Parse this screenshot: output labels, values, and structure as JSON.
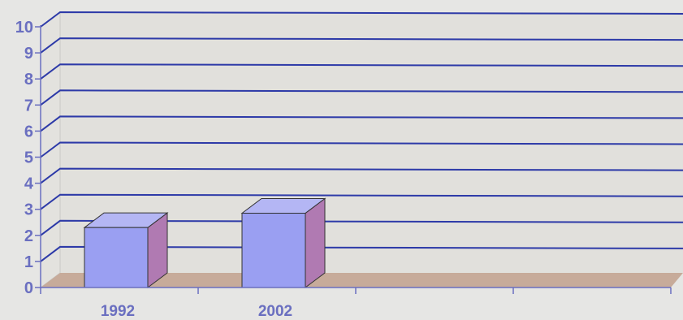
{
  "chart_data": {
    "type": "bar",
    "style": "3d",
    "categories": [
      "1992",
      "2002"
    ],
    "values": [
      2.3,
      2.85
    ],
    "ylim": [
      0,
      10
    ],
    "yticks": [
      "0",
      "1",
      "2",
      "3",
      "4",
      "5",
      "6",
      "7",
      "8",
      "9",
      "10"
    ],
    "grid": true,
    "legend": "none",
    "title": "",
    "xlabel": "",
    "ylabel": ""
  },
  "colors": {
    "bar_front": "#9a9ff2",
    "bar_top": "#b4b6f4",
    "bar_side": "#b07ab2",
    "grid": "#2d3aa8",
    "floor": "#c7ab9a",
    "axis_text": "#6a6fc0",
    "back_wall": "#e1e0dc"
  }
}
